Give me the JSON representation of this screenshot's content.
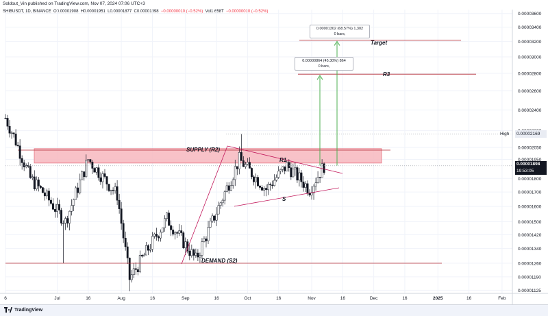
{
  "header": {
    "publisher_line": "Soldout_Vin published on TradingView.com, Nov 07, 2024 07:06 UTC+3",
    "symbol": "SHIBUSDT, 1D, BINANCE",
    "o_label": "O",
    "o": "0.00001908",
    "h_label": "H",
    "h": "0.00001951",
    "l_label": "L",
    "l": "0.00001877",
    "c_label": "C",
    "c": "0.00001898",
    "change": "−0.00000010 (−0.52%)",
    "vol": "Vol1.658T",
    "change2": "−0.00000010 (−0.52%)"
  },
  "price_axis": {
    "ticks": [
      "0.00003600",
      "0.00003400",
      "0.00003200",
      "0.00003000",
      "0.00002800",
      "0.00002600",
      "0.00002400",
      "0.00002200",
      "0.00002050",
      "0.00001950",
      "0.00001800",
      "0.00001700",
      "0.00001600",
      "0.00001500",
      "0.00001420",
      "0.00001340",
      "0.00001260",
      "0.00001190",
      "0.00001125"
    ],
    "high_label": "High",
    "high_value": "0.00002169",
    "last_price": "0.00001898",
    "countdown": "19:53:05"
  },
  "time_axis": {
    "ticks": [
      "6",
      "Jul",
      "16",
      "Aug",
      "16",
      "Sep",
      "16",
      "Oct",
      "16",
      "Nov",
      "16",
      "Dec",
      "16",
      "2025",
      "16",
      "Feb"
    ]
  },
  "annotations": {
    "supply": "SUPPLY (R2)",
    "demand": "DEMAND (S2)",
    "r1": "R1",
    "s": "S",
    "r3": "R3",
    "target": "Target",
    "measure_r3": "0.00000864 (45.30%) 864",
    "measure_r3_bars": "0 bars,",
    "measure_target": "0.00001302 (68.57%) 1,302",
    "measure_target_bars": "0 bars,"
  },
  "branding": {
    "logo_text": "TradingView"
  },
  "colors": {
    "up": "#131722",
    "down": "#131722",
    "zone_fill": "#f7b7be",
    "zone_stroke": "#e57380",
    "level_line": "#b22833",
    "arrow": "#4caf50",
    "trend": "#c2185b"
  },
  "chart_data": {
    "type": "candlestick",
    "y_scale": "log",
    "ylim": [
      1.11e-05,
      3.66e-05
    ],
    "x_range_days": [
      "2024-06-06",
      "2025-02-06"
    ],
    "closes_approx": [
      {
        "date": "2024-06-06",
        "close": 2.32e-05
      },
      {
        "date": "2024-06-10",
        "close": 2.15e-05
      },
      {
        "date": "2024-06-18",
        "close": 1.8e-05
      },
      {
        "date": "2024-06-24",
        "close": 1.7e-05
      },
      {
        "date": "2024-07-05",
        "close": 1.5e-05
      },
      {
        "date": "2024-07-16",
        "close": 1.95e-05
      },
      {
        "date": "2024-07-30",
        "close": 1.68e-05
      },
      {
        "date": "2024-08-05",
        "close": 1.18e-05
      },
      {
        "date": "2024-08-23",
        "close": 1.52e-05
      },
      {
        "date": "2024-09-06",
        "close": 1.28e-05
      },
      {
        "date": "2024-09-27",
        "close": 1.95e-05
      },
      {
        "date": "2024-10-10",
        "close": 1.72e-05
      },
      {
        "date": "2024-10-20",
        "close": 1.9e-05
      },
      {
        "date": "2024-10-31",
        "close": 1.72e-05
      },
      {
        "date": "2024-11-07",
        "close": 1.9e-05
      }
    ],
    "levels": {
      "supply_zone": [
        1.92e-05,
        2.04e-05
      ],
      "demand": 1.26e-05,
      "r3": 2.79e-05,
      "target": 3.22e-05,
      "high": 2.169e-05,
      "last": 1.898e-05
    },
    "measures": [
      {
        "from": 1.9e-05,
        "to": 2.764e-05,
        "text": "0.00000864 (45.30%) 864"
      },
      {
        "from": 1.9e-05,
        "to": 3.202e-05,
        "text": "0.00001302 (68.57%) 1,302"
      }
    ]
  }
}
